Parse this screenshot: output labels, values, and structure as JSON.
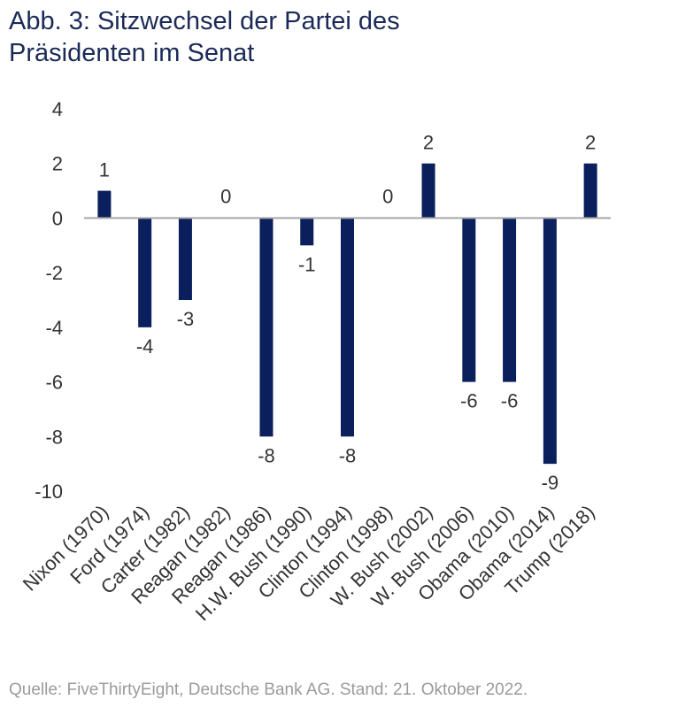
{
  "title_lines": [
    "Abb. 3: Sitzwechsel der Partei des",
    "Präsidenten im Senat"
  ],
  "source": "Quelle: FiveThirtyEight, Deutsche Bank AG. Stand: 21. Oktober 2022.",
  "colors": {
    "bar": "#0b1f5c",
    "axis": "#a6a6a6",
    "text": "#333333"
  },
  "chart_data": {
    "type": "bar",
    "categories": [
      "Nixon (1970)",
      "Ford (1974)",
      "Carter (1982)",
      "Reagan (1982)",
      "Reagan (1986)",
      "H.W. Bush (1990)",
      "Clinton (1994)",
      "Clinton (1998)",
      "W. Bush (2002)",
      "W. Bush (2006)",
      "Obama (2010)",
      "Obama (2014)",
      "Trump (2018)"
    ],
    "values": [
      1,
      -4,
      -3,
      0,
      -8,
      -1,
      -8,
      0,
      2,
      -6,
      -6,
      -9,
      2
    ],
    "ylim": [
      -10,
      4
    ],
    "yticks": [
      4,
      2,
      0,
      -2,
      -4,
      -6,
      -8,
      -10
    ],
    "grid": false,
    "data_labels": true
  }
}
